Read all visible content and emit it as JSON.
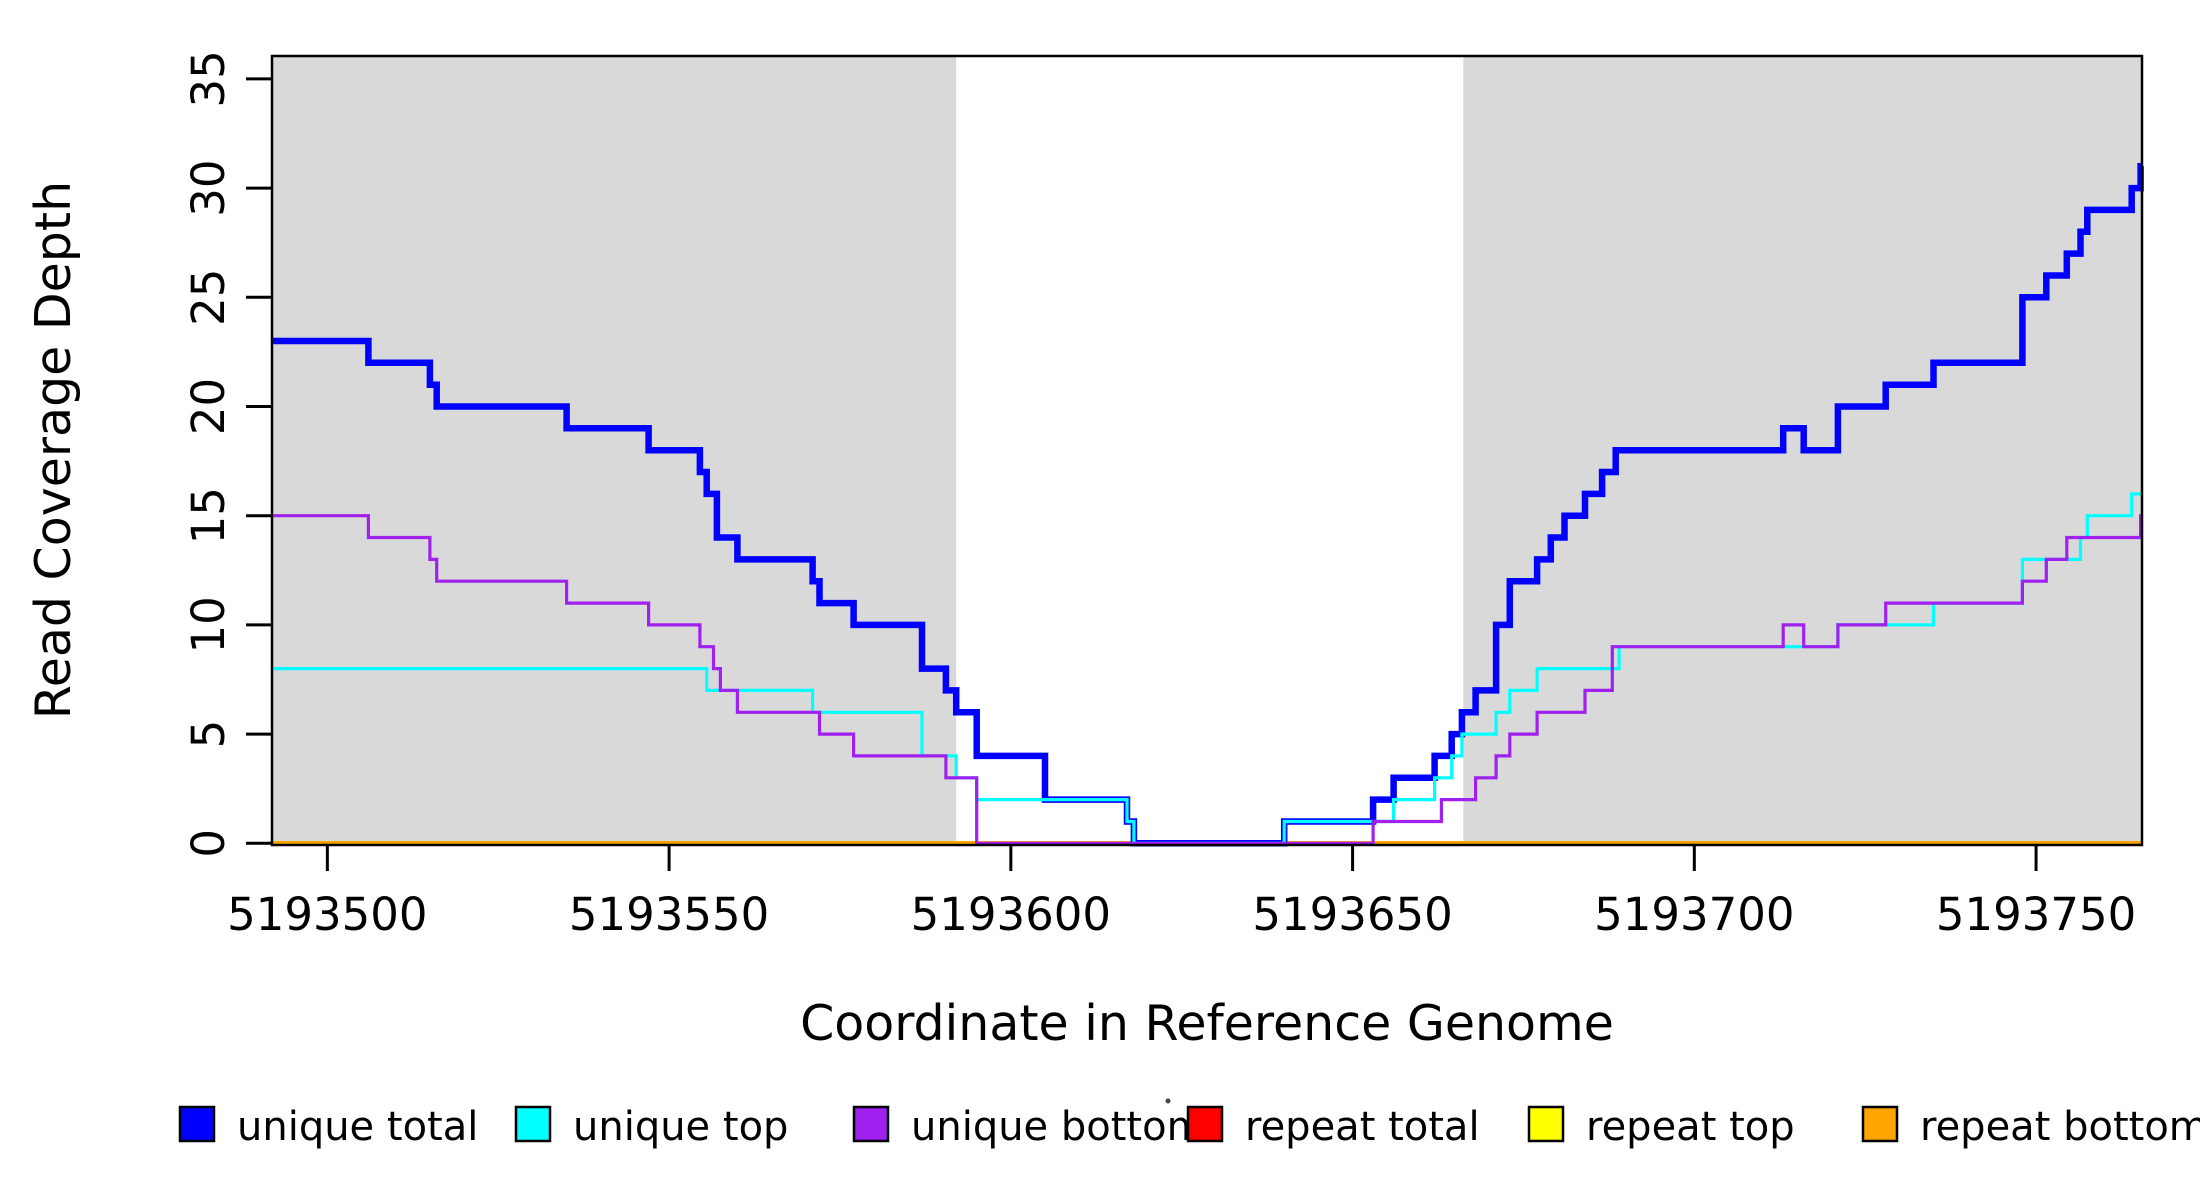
{
  "chart_data": {
    "type": "line",
    "subtype": "step-coverage-plot",
    "title": "",
    "xlabel": "Coordinate in Reference Genome",
    "ylabel": "Read Coverage Depth",
    "xlim": [
      5193491.9,
      5193765.5
    ],
    "ylim": [
      0,
      36
    ],
    "x_ticks": [
      5193500,
      5193550,
      5193600,
      5193650,
      5193700,
      5193750
    ],
    "y_ticks": [
      0,
      5,
      10,
      15,
      20,
      25,
      30,
      35
    ],
    "grid": false,
    "background_color": "#ffffff",
    "band_color": "#D9D9D9",
    "shaded_regions": [
      {
        "name": "left-gray-band",
        "x0": 5193491.9,
        "x1": 5193592.0
      },
      {
        "name": "right-gray-band",
        "x0": 5193666.2,
        "x1": 5193765.5
      }
    ],
    "legend": {
      "position": "bottom",
      "entries": [
        {
          "label": "unique total",
          "color": "#0000FF"
        },
        {
          "label": "unique top",
          "color": "#00FFFF"
        },
        {
          "label": "unique bottom",
          "color": "#A020F0"
        },
        {
          "label": "repeat total",
          "color": "#FF0000"
        },
        {
          "label": "repeat top",
          "color": "#FFFF00"
        },
        {
          "label": "repeat bottom",
          "color": "#FFA500"
        }
      ]
    },
    "series": [
      {
        "name": "repeat total",
        "color": "#FF0000",
        "line_width": 3,
        "steps": [
          [
            5193492,
            0
          ]
        ]
      },
      {
        "name": "repeat top",
        "color": "#FFFF00",
        "line_width": 3,
        "steps": [
          [
            5193492,
            0
          ]
        ]
      },
      {
        "name": "repeat bottom",
        "color": "#FFA500",
        "line_width": 4.5,
        "steps": [
          [
            5193492,
            0
          ]
        ]
      },
      {
        "name": "unique total",
        "color": "#0000FF",
        "line_width": 6.5,
        "steps": [
          [
            5193492,
            23
          ],
          [
            5193506,
            22
          ],
          [
            5193515,
            21
          ],
          [
            5193516,
            20
          ],
          [
            5193535,
            19
          ],
          [
            5193547,
            18
          ],
          [
            5193554.5,
            17
          ],
          [
            5193555.5,
            16
          ],
          [
            5193557,
            14
          ],
          [
            5193560,
            13
          ],
          [
            5193571,
            12
          ],
          [
            5193572,
            11
          ],
          [
            5193577,
            10
          ],
          [
            5193587,
            8
          ],
          [
            5193590.5,
            7
          ],
          [
            5193592,
            6
          ],
          [
            5193595,
            4
          ],
          [
            5193605,
            2
          ],
          [
            5193617,
            1
          ],
          [
            5193618,
            0
          ],
          [
            5193640,
            1
          ],
          [
            5193653,
            2
          ],
          [
            5193656,
            3
          ],
          [
            5193662,
            4
          ],
          [
            5193664.5,
            5
          ],
          [
            5193666,
            6
          ],
          [
            5193668,
            7
          ],
          [
            5193671,
            10
          ],
          [
            5193673,
            12
          ],
          [
            5193677,
            13
          ],
          [
            5193679,
            14
          ],
          [
            5193681,
            15
          ],
          [
            5193684,
            16
          ],
          [
            5193686.5,
            17
          ],
          [
            5193688.5,
            18
          ],
          [
            5193713,
            19
          ],
          [
            5193716,
            18
          ],
          [
            5193721,
            20
          ],
          [
            5193728,
            21
          ],
          [
            5193735,
            22
          ],
          [
            5193748,
            25
          ],
          [
            5193751.5,
            26
          ],
          [
            5193754.5,
            27
          ],
          [
            5193756.5,
            28
          ],
          [
            5193757.5,
            29
          ],
          [
            5193764,
            30
          ],
          [
            5193765.3,
            31
          ]
        ]
      },
      {
        "name": "unique top",
        "color": "#00FFFF",
        "line_width": 3.2,
        "steps": [
          [
            5193492,
            8
          ],
          [
            5193555.5,
            7
          ],
          [
            5193571,
            6
          ],
          [
            5193587,
            4
          ],
          [
            5193592,
            3
          ],
          [
            5193595,
            2
          ],
          [
            5193617,
            1
          ],
          [
            5193618,
            0
          ],
          [
            5193640,
            1
          ],
          [
            5193656,
            2
          ],
          [
            5193662,
            3
          ],
          [
            5193664.5,
            4
          ],
          [
            5193666,
            5
          ],
          [
            5193671,
            6
          ],
          [
            5193673,
            7
          ],
          [
            5193677,
            8
          ],
          [
            5193689,
            9
          ],
          [
            5193721,
            10
          ],
          [
            5193735,
            11
          ],
          [
            5193748,
            13
          ],
          [
            5193756.5,
            14
          ],
          [
            5193757.5,
            15
          ],
          [
            5193764,
            16
          ]
        ]
      },
      {
        "name": "unique bottom",
        "color": "#A020F0",
        "line_width": 3.2,
        "steps": [
          [
            5193492,
            15
          ],
          [
            5193506,
            14
          ],
          [
            5193515,
            13
          ],
          [
            5193516,
            12
          ],
          [
            5193535,
            11
          ],
          [
            5193547,
            10
          ],
          [
            5193554.5,
            9
          ],
          [
            5193556.5,
            8
          ],
          [
            5193557.5,
            7
          ],
          [
            5193560,
            6
          ],
          [
            5193572,
            5
          ],
          [
            5193577,
            4
          ],
          [
            5193590.5,
            3
          ],
          [
            5193595,
            0
          ],
          [
            5193653,
            1
          ],
          [
            5193663,
            2
          ],
          [
            5193668,
            3
          ],
          [
            5193671,
            4
          ],
          [
            5193673,
            5
          ],
          [
            5193677,
            6
          ],
          [
            5193684,
            7
          ],
          [
            5193688,
            9
          ],
          [
            5193713,
            10
          ],
          [
            5193716,
            9
          ],
          [
            5193721,
            10
          ],
          [
            5193728,
            11
          ],
          [
            5193748,
            12
          ],
          [
            5193751.5,
            13
          ],
          [
            5193754.5,
            14
          ],
          [
            5193765.3,
            15
          ]
        ]
      }
    ]
  }
}
